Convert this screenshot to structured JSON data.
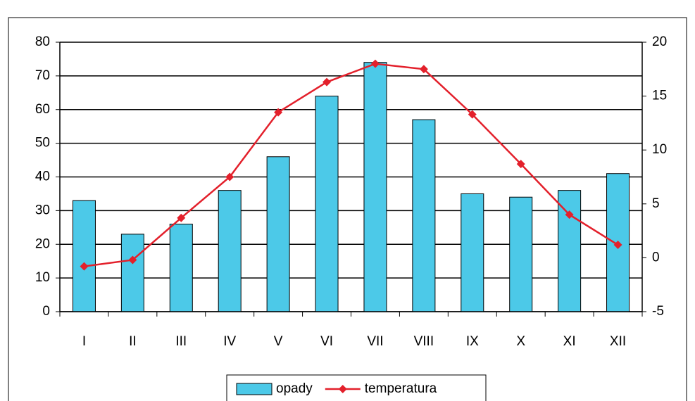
{
  "chart_data": {
    "type": "bar-line",
    "categories": [
      "I",
      "II",
      "III",
      "IV",
      "V",
      "VI",
      "VII",
      "VIII",
      "IX",
      "X",
      "XI",
      "XII"
    ],
    "series": [
      {
        "name": "opady",
        "type": "bar",
        "color": "#4cc9e8",
        "values": [
          33,
          23,
          26,
          36,
          46,
          64,
          74,
          57,
          35,
          34,
          36,
          41
        ]
      },
      {
        "name": "temperatura",
        "type": "line",
        "axis": "y2",
        "color": "#e3202b",
        "values": [
          -0.8,
          -0.2,
          3.7,
          7.5,
          13.5,
          16.3,
          18.0,
          17.5,
          13.3,
          8.7,
          4.0,
          1.2
        ]
      }
    ],
    "ylim": [
      0,
      80
    ],
    "yticks": [
      0,
      10,
      20,
      30,
      40,
      50,
      60,
      70,
      80
    ],
    "y2lim": [
      -5,
      20
    ],
    "y2ticks": [
      -5,
      0,
      5,
      10,
      15,
      20
    ],
    "grid": true,
    "legend": "bottom"
  }
}
